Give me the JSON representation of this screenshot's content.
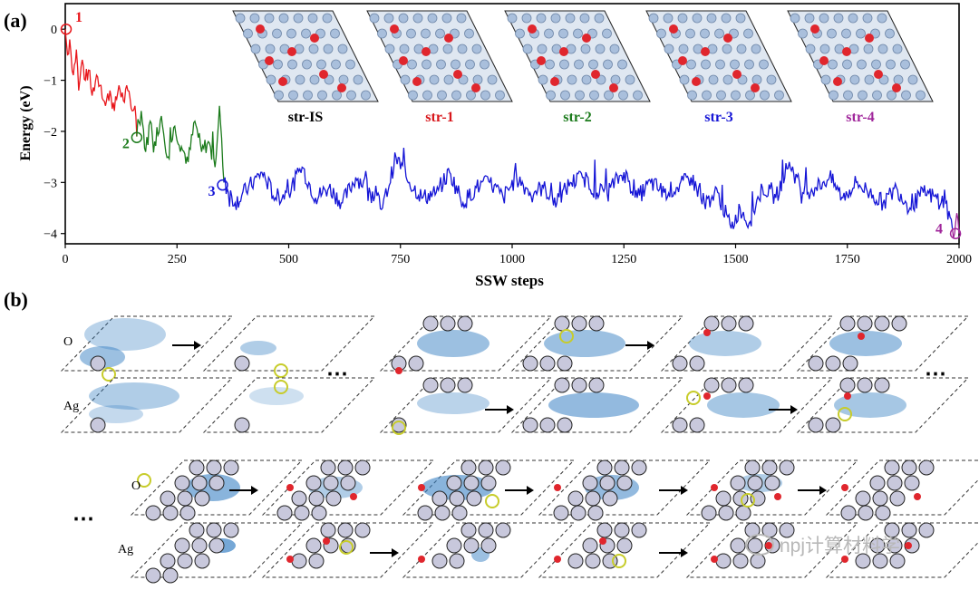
{
  "panel_a": {
    "label": "(a)",
    "chart_data": {
      "type": "line",
      "xlabel": "SSW steps",
      "ylabel": "Energy (eV)",
      "xlim": [
        0,
        2000
      ],
      "ylim": [
        -4.2,
        0.5
      ],
      "xticks": [
        "0",
        "250",
        "500",
        "750",
        "1000",
        "1250",
        "1500",
        "1750",
        "2000"
      ],
      "yticks": [
        "0",
        "−1",
        "−2",
        "−3",
        "−4"
      ],
      "series": [
        {
          "color": "#e8161b",
          "x": [
            0,
            5,
            10,
            18,
            25,
            30,
            38,
            45,
            52,
            60,
            70,
            80,
            90,
            100,
            110,
            120,
            130,
            140,
            150,
            156,
            160
          ],
          "y": [
            0,
            -0.5,
            -0.2,
            -0.9,
            -0.4,
            -1.2,
            -0.6,
            -1.0,
            -0.8,
            -1.3,
            -0.9,
            -1.1,
            -1.5,
            -1.2,
            -1.6,
            -1.1,
            -1.4,
            -1.2,
            -1.6,
            -1.5,
            -2.1
          ]
        },
        {
          "color": "#1a7a1a",
          "x": [
            160,
            170,
            180,
            190,
            200,
            215,
            230,
            245,
            260,
            275,
            290,
            305,
            320,
            335,
            345,
            355
          ],
          "y": [
            -2.1,
            -1.6,
            -2.4,
            -1.8,
            -2.2,
            -1.7,
            -2.5,
            -1.9,
            -2.3,
            -2.6,
            -1.8,
            -2.4,
            -2.2,
            -2.7,
            -1.5,
            -3.0
          ]
        },
        {
          "color": "#1515d6",
          "x": [
            355,
            380,
            410,
            440,
            470,
            500,
            530,
            560,
            590,
            620,
            650,
            680,
            710,
            740,
            770,
            800,
            830,
            860,
            890,
            920,
            950,
            980,
            1010,
            1040,
            1070,
            1100,
            1130,
            1160,
            1190,
            1220,
            1250,
            1280,
            1310,
            1340,
            1370,
            1400,
            1430,
            1460,
            1490,
            1510,
            1530,
            1560,
            1590,
            1620,
            1650,
            1680,
            1710,
            1740,
            1770,
            1800,
            1830,
            1860,
            1890,
            1920,
            1950,
            1970,
            1985
          ],
          "y": [
            -3.0,
            -3.4,
            -3.1,
            -2.8,
            -3.3,
            -3.2,
            -2.7,
            -3.3,
            -3.1,
            -3.4,
            -2.9,
            -3.1,
            -3.5,
            -2.5,
            -3.0,
            -3.3,
            -3.2,
            -2.8,
            -3.4,
            -3.1,
            -3.0,
            -3.3,
            -2.9,
            -3.2,
            -3.1,
            -3.4,
            -3.0,
            -2.9,
            -3.2,
            -3.1,
            -2.8,
            -3.3,
            -3.0,
            -3.2,
            -3.1,
            -2.9,
            -3.4,
            -3.2,
            -3.9,
            -3.5,
            -3.8,
            -3.1,
            -3.3,
            -2.6,
            -3.2,
            -3.1,
            -2.9,
            -3.3,
            -3.0,
            -3.2,
            -3.4,
            -3.1,
            -3.5,
            -3.2,
            -3.3,
            -3.4,
            -3.9
          ]
        },
        {
          "color": "#a0269b",
          "x": [
            1985,
            1990,
            1995,
            2000
          ],
          "y": [
            -3.9,
            -4.0,
            -3.6,
            -4.0
          ]
        }
      ],
      "markers": [
        {
          "label": "1",
          "x": 2,
          "y": 0,
          "color": "#e8161b"
        },
        {
          "label": "2",
          "x": 160,
          "y": -2.12,
          "color": "#1a7a1a"
        },
        {
          "label": "3",
          "x": 352,
          "y": -3.05,
          "color": "#1515d6"
        },
        {
          "label": "4",
          "x": 1992,
          "y": -4.0,
          "color": "#a0269b"
        }
      ]
    },
    "structures": [
      {
        "label": "str-IS",
        "color": "#000000"
      },
      {
        "label": "str-1",
        "color": "#d8161b"
      },
      {
        "label": "str-2",
        "color": "#1a7a1a"
      },
      {
        "label": "str-3",
        "color": "#1515d6"
      },
      {
        "label": "str-4",
        "color": "#a0269b"
      }
    ]
  },
  "panel_b": {
    "label": "(b)",
    "row_labels": {
      "o": "O",
      "ag": "Ag"
    },
    "ellipsis": "⋯"
  },
  "watermark": "npj计算材料学"
}
